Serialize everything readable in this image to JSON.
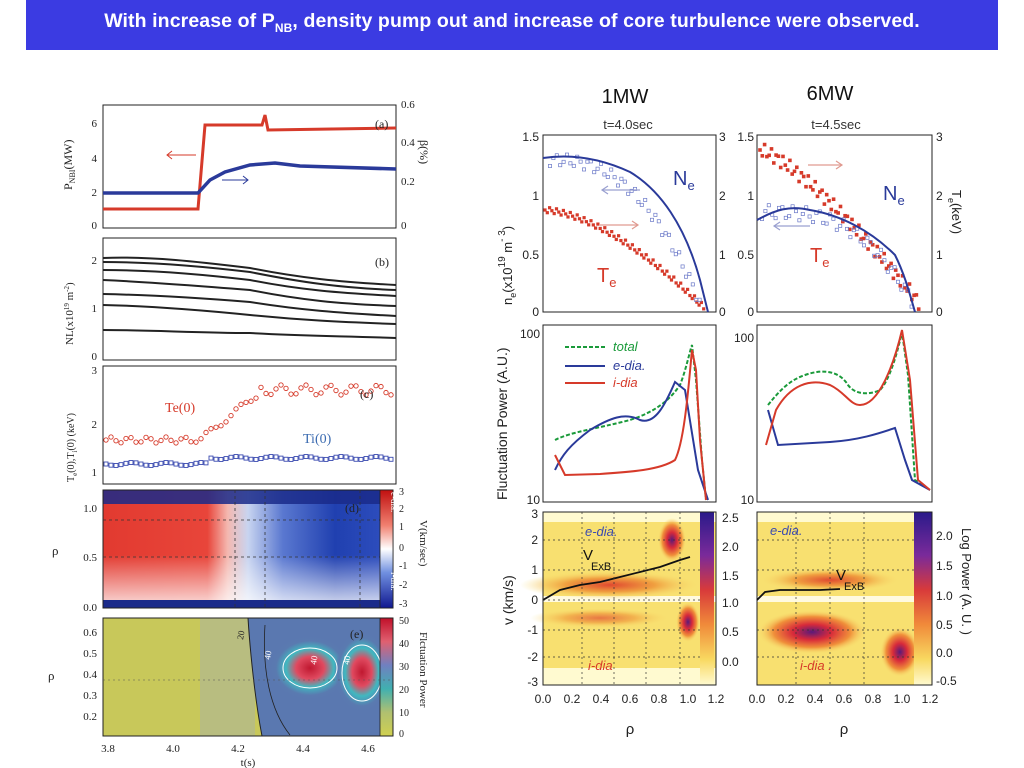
{
  "slide": {
    "title_pre": "With  increase of P",
    "title_sub": "NB",
    "title_post": ", density pump out and increase of core turbulence were observed."
  },
  "left_figure": {
    "panel_a": {
      "label": "(a)",
      "ylabel_left": "P",
      "ylabel_left_sub": "NBI",
      "ylabel_left_unit": "(MW)",
      "ylabel_right": "β(%)",
      "yticks_left": [
        "0",
        "2",
        "4",
        "6"
      ],
      "yticks_right": [
        "0",
        "0.2",
        "0.4",
        "0.6"
      ]
    },
    "panel_b": {
      "label": "(b)",
      "ylabel": "NL(x10",
      "ylabel_exp": "19",
      "ylabel_unit": " m",
      "ylabel_unit_exp": "-2",
      "ylabel_close": ")",
      "yticks": [
        "0",
        "1",
        "2"
      ]
    },
    "panel_c": {
      "label": "(c)",
      "ylabel": "T",
      "ylabel_tail": "(0),T",
      "ylabel_tail2": "(0) (keV)",
      "yticks": [
        "1",
        "2",
        "3"
      ],
      "te_label": "Te(0)",
      "ti_label": "Ti(0)"
    },
    "panel_d": {
      "label": "(d)",
      "ylabel": "ρ",
      "yticks": [
        "0.0",
        "0.5",
        "1.0"
      ],
      "cbar_ticks": [
        "3",
        "2",
        "1",
        "0",
        "-1",
        "-2",
        "-3"
      ],
      "cbar_label": "V(km/sec)",
      "cbar_top": "e-dia.",
      "cbar_bottom": "i-dia."
    },
    "panel_e": {
      "label": "(e)",
      "ylabel": "ρ",
      "yticks": [
        "0.2",
        "0.3",
        "0.4",
        "0.5",
        "0.6"
      ],
      "cbar_ticks": [
        "50",
        "40",
        "30",
        "20",
        "10",
        "0"
      ],
      "cbar_label": "Flctuation Power",
      "contour_labels": [
        "20",
        "40",
        "40",
        "40"
      ]
    },
    "xticks": [
      "3.8",
      "4.0",
      "4.2",
      "4.4",
      "4.6"
    ],
    "xlabel": "t(s)"
  },
  "right_figure": {
    "col1_header": "1MW",
    "col2_header": "6MW",
    "col1_time": "t=4.0sec",
    "col2_time": "t=4.5sec",
    "profile": {
      "ylabel_ne": "n",
      "ylabel_ne_sub": "e",
      "ylabel_ne_rest": "(x10",
      "ylabel_ne_exp": "19",
      "ylabel_ne_unit": " m",
      "ylabel_ne_unit_exp": "- 3",
      "ylabel_ne_close": ")",
      "ylabel_te": "T",
      "ylabel_te_sub": "e",
      "ylabel_te_unit": "(keV)",
      "yticks_left": [
        "0",
        "0.5",
        "1",
        "1.5"
      ],
      "yticks_mid": [
        "0",
        "1",
        "2",
        "3"
      ],
      "yticks_mid2": [
        "1.5",
        "1",
        "0.5",
        "0"
      ],
      "yticks_right": [
        "0",
        "1",
        "2",
        "3"
      ],
      "ne_label": "N",
      "ne_sub": "e",
      "te_label": "T",
      "te_sub": "e"
    },
    "fluct": {
      "ylabel": "Fluctuation Power (A.U.)",
      "yticks": [
        "10",
        "100"
      ],
      "legend": [
        "total",
        "e-dia.",
        "i-dia"
      ]
    },
    "spectrum": {
      "ylabel": "v (km/s)",
      "yticks": [
        "-3",
        "-2",
        "-1",
        "0",
        "1",
        "2",
        "3"
      ],
      "cbar1_ticks": [
        "2.5",
        "2.0",
        "1.5",
        "1.0",
        "0.5",
        "0.0"
      ],
      "cbar2_ticks": [
        "2.0",
        "1.5",
        "1.0",
        "0.5",
        "0.0",
        "-0.5"
      ],
      "cbar_label": "Log  Power  (A. U. )",
      "edia": "e-dia.",
      "idia": "i-dia",
      "idia2": "i-dia .",
      "vexb": "V",
      "vexb_sub": "ExB"
    },
    "xticks": [
      "0.0",
      "0.2",
      "0.4",
      "0.6",
      "0.8",
      "1.0",
      "1.2"
    ],
    "xlabel": "ρ"
  },
  "colors": {
    "title_bg": "#3b3be2",
    "red": "#d03a2a",
    "blue": "#2a3a9a",
    "green": "#1a9a3a"
  }
}
